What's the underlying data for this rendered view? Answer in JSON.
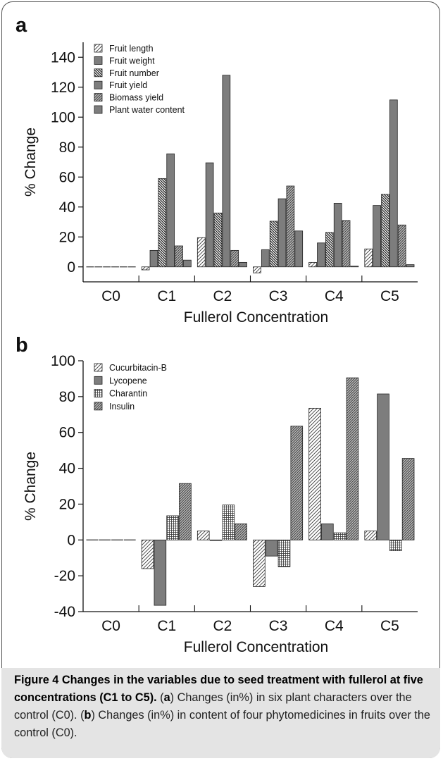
{
  "chart_data": [
    {
      "type": "bar",
      "panel": "a",
      "categories": [
        "C0",
        "C1",
        "C2",
        "C3",
        "C4",
        "C5"
      ],
      "xlabel": "Fullerol Concentration",
      "ylabel": "% Change",
      "ylim": [
        -10,
        150
      ],
      "yticks": [
        0,
        20,
        40,
        60,
        80,
        100,
        120,
        140
      ],
      "legend_position": "top-left",
      "series": [
        {
          "name": "Fruit length",
          "pattern": "diag-light",
          "values": [
            0,
            -2,
            19.5,
            -4,
            3,
            12
          ]
        },
        {
          "name": "Fruit weight",
          "pattern": "solid-gray",
          "values": [
            0,
            11,
            69.5,
            11.5,
            16,
            41
          ]
        },
        {
          "name": "Fruit number",
          "pattern": "diag-dense",
          "values": [
            0,
            59,
            36,
            30.5,
            23,
            48.5
          ]
        },
        {
          "name": "Fruit yield",
          "pattern": "solid-gray",
          "values": [
            0,
            75.5,
            128,
            45.5,
            42.5,
            111.5
          ]
        },
        {
          "name": "Biomass yield",
          "pattern": "diag-medium",
          "values": [
            0,
            14,
            11,
            54,
            31,
            28
          ]
        },
        {
          "name": "Plant water content",
          "pattern": "solid-gray",
          "values": [
            0,
            4.5,
            3,
            24,
            0.5,
            1.5
          ]
        }
      ]
    },
    {
      "type": "bar",
      "panel": "b",
      "categories": [
        "C0",
        "C1",
        "C2",
        "C3",
        "C4",
        "C5"
      ],
      "xlabel": "Fullerol Concentration",
      "ylabel": "% Change",
      "ylim": [
        -40,
        100
      ],
      "yticks": [
        -40,
        -20,
        0,
        20,
        40,
        60,
        80,
        100
      ],
      "legend_position": "top-left",
      "series": [
        {
          "name": "Cucurbitacin-B",
          "pattern": "diag-light",
          "values": [
            0,
            -16,
            5,
            -26,
            73.5,
            5
          ]
        },
        {
          "name": "Lycopene",
          "pattern": "solid-gray",
          "values": [
            0,
            -36.5,
            0,
            -9,
            9,
            81.5
          ]
        },
        {
          "name": "Charantin",
          "pattern": "grid",
          "values": [
            0,
            13.5,
            19.5,
            -15,
            4,
            -6
          ]
        },
        {
          "name": "Insulin",
          "pattern": "diag-medium",
          "values": [
            0,
            31.5,
            9,
            63.5,
            90.5,
            45.5
          ]
        }
      ]
    }
  ],
  "colors": {
    "bar_fill": "#7d7d7d",
    "caption_background": "#e4e4e4",
    "frame": "#555555"
  },
  "caption": {
    "title": "Figure 4 Changes in the variables due to seed treatment with fullerol at five concentrations (C1 to C5).",
    "part_a_open": " (",
    "part_a_label": "a",
    "part_a_text": ") Changes (in%) in six plant characters over the control (C0). (",
    "part_b_label": "b",
    "part_b_text": ") Changes (in%) in content of four phytomedicines in fruits over the control (C0)."
  }
}
